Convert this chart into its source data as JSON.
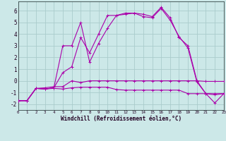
{
  "xlabel": "Windchill (Refroidissement éolien,°C)",
  "background_color": "#cce8e8",
  "grid_color": "#aacccc",
  "line_color": "#aa00aa",
  "xlim": [
    0,
    23
  ],
  "ylim": [
    -2.5,
    6.8
  ],
  "yticks": [
    -2,
    -1,
    0,
    1,
    2,
    3,
    4,
    5,
    6
  ],
  "xticks": [
    0,
    1,
    2,
    3,
    4,
    5,
    6,
    7,
    8,
    9,
    10,
    11,
    12,
    13,
    14,
    15,
    16,
    17,
    18,
    19,
    20,
    21,
    22,
    23
  ],
  "series1_x": [
    0,
    1,
    2,
    3,
    4,
    5,
    6,
    7,
    8,
    9,
    10,
    11,
    12,
    13,
    14,
    15,
    16,
    17,
    18,
    19,
    20,
    21,
    22,
    23
  ],
  "series1_y": [
    -1.7,
    -1.7,
    -0.65,
    -0.7,
    -0.65,
    -0.7,
    -0.6,
    -0.55,
    -0.55,
    -0.55,
    -0.55,
    -0.75,
    -0.8,
    -0.8,
    -0.8,
    -0.8,
    -0.8,
    -0.8,
    -0.8,
    -1.1,
    -1.1,
    -1.1,
    -1.1,
    -1.1
  ],
  "series2_x": [
    0,
    1,
    2,
    3,
    4,
    5,
    6,
    7,
    8,
    9,
    10,
    11,
    12,
    13,
    14,
    15,
    16,
    17,
    18,
    19,
    20,
    21,
    22,
    23
  ],
  "series2_y": [
    -1.7,
    -1.7,
    -0.65,
    -0.6,
    -0.5,
    -0.5,
    0.0,
    -0.15,
    0.0,
    0.0,
    0.0,
    0.0,
    0.0,
    0.0,
    0.0,
    0.0,
    0.0,
    0.0,
    0.0,
    0.0,
    0.0,
    -0.05,
    -0.05,
    -0.05
  ],
  "series3_x": [
    0,
    1,
    2,
    3,
    4,
    5,
    6,
    7,
    8,
    9,
    10,
    11,
    12,
    13,
    14,
    15,
    16,
    17,
    18,
    19,
    20,
    21,
    22,
    23
  ],
  "series3_y": [
    -1.7,
    -1.7,
    -0.65,
    -0.7,
    -0.6,
    3.0,
    3.0,
    5.0,
    1.6,
    3.2,
    4.5,
    5.6,
    5.7,
    5.8,
    5.7,
    5.5,
    6.3,
    5.4,
    3.7,
    3.0,
    0.0,
    -1.1,
    -1.2,
    -1.1
  ],
  "series4_x": [
    0,
    1,
    2,
    3,
    4,
    5,
    6,
    7,
    8,
    9,
    10,
    11,
    12,
    13,
    14,
    15,
    16,
    17,
    18,
    19,
    20,
    21,
    22,
    23
  ],
  "series4_y": [
    -1.7,
    -1.7,
    -0.65,
    -0.7,
    -0.6,
    0.7,
    1.2,
    3.7,
    2.4,
    4.0,
    5.6,
    5.6,
    5.8,
    5.8,
    5.5,
    5.4,
    6.2,
    5.2,
    3.8,
    2.8,
    -0.1,
    -1.1,
    -1.9,
    -1.1
  ],
  "xlabel_fontsize": 5.5,
  "tick_fontsize_x": 4.2,
  "tick_fontsize_y": 5.5
}
